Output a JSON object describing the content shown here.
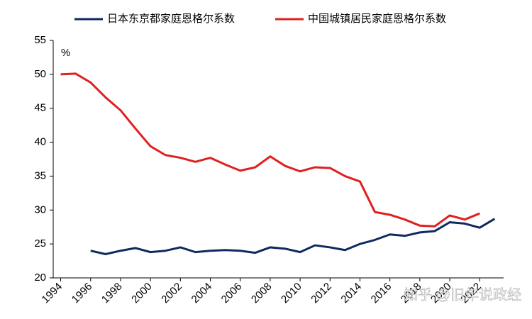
{
  "chart_data": {
    "type": "line",
    "y_unit": "%",
    "x": [
      1994,
      1995,
      1996,
      1997,
      1998,
      1999,
      2000,
      2001,
      2002,
      2003,
      2004,
      2005,
      2006,
      2007,
      2008,
      2009,
      2010,
      2011,
      2012,
      2013,
      2014,
      2015,
      2016,
      2017,
      2018,
      2019,
      2020,
      2021,
      2022,
      2023
    ],
    "series": [
      {
        "name": "日本东京都家庭恩格尔系数",
        "color": "#0e2a5f",
        "values": [
          null,
          null,
          24,
          23.5,
          24,
          24.4,
          23.8,
          24,
          24.5,
          23.8,
          24,
          24.1,
          24,
          23.7,
          24.5,
          24.3,
          23.8,
          24.8,
          24.5,
          24.1,
          25,
          25.6,
          26.4,
          26.2,
          26.7,
          26.9,
          28.2,
          28,
          27.4,
          28.7
        ]
      },
      {
        "name": "中国城镇居民家庭恩格尔系数",
        "color": "#e02020",
        "values": [
          50,
          50.1,
          48.8,
          46.6,
          44.7,
          42,
          39.4,
          38.1,
          37.7,
          37.1,
          37.7,
          36.7,
          35.8,
          36.3,
          37.9,
          36.5,
          35.7,
          36.3,
          36.2,
          35,
          34.2,
          29.7,
          29.3,
          28.6,
          27.7,
          27.6,
          29.2,
          28.6,
          29.5,
          null
        ]
      }
    ],
    "xlim": [
      1993.5,
      2023.6
    ],
    "xticks": [
      1994,
      1996,
      1998,
      2000,
      2002,
      2004,
      2006,
      2008,
      2010,
      2012,
      2014,
      2016,
      2018,
      2020,
      2022
    ],
    "ylim": [
      20,
      55
    ],
    "yticks": [
      20,
      25,
      30,
      35,
      40,
      45,
      50,
      55
    ],
    "legend": "top",
    "watermark": "知乎 @旧年说政经"
  }
}
